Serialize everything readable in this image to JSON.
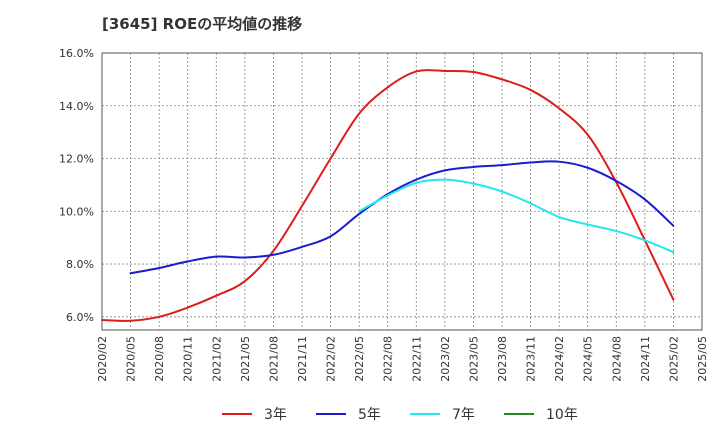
{
  "chart_data": {
    "type": "line",
    "title": "[3645]  ROEの平均値の推移",
    "xlabel": "",
    "ylabel": "",
    "ylim": [
      5.5,
      16.0
    ],
    "y_ticks": [
      6.0,
      8.0,
      10.0,
      12.0,
      14.0,
      16.0
    ],
    "y_tick_labels": [
      "6.0%",
      "8.0%",
      "10.0%",
      "12.0%",
      "14.0%",
      "16.0%"
    ],
    "x_tick_labels": [
      "2020/02",
      "2020/05",
      "2020/08",
      "2020/11",
      "2021/02",
      "2021/05",
      "2021/08",
      "2021/11",
      "2022/02",
      "2022/05",
      "2022/08",
      "2022/11",
      "2023/02",
      "2023/05",
      "2023/08",
      "2023/11",
      "2024/02",
      "2024/05",
      "2024/08",
      "2024/11",
      "2025/02",
      "2025/05"
    ],
    "grid": true,
    "legend_position": "bottom",
    "series": [
      {
        "name": "3年",
        "color": "#dd1c1c",
        "points": [
          [
            0,
            5.88
          ],
          [
            1,
            5.85
          ],
          [
            2,
            6.0
          ],
          [
            3,
            6.35
          ],
          [
            4,
            6.8
          ],
          [
            5,
            7.35
          ],
          [
            6,
            8.5
          ],
          [
            7,
            10.2
          ],
          [
            8,
            12.0
          ],
          [
            9,
            13.7
          ],
          [
            10,
            14.7
          ],
          [
            11,
            15.3
          ],
          [
            12,
            15.32
          ],
          [
            13,
            15.28
          ],
          [
            14,
            15.0
          ],
          [
            15,
            14.6
          ],
          [
            16,
            13.9
          ],
          [
            17,
            12.9
          ],
          [
            18,
            11.1
          ],
          [
            19,
            8.9
          ],
          [
            20,
            6.65
          ]
        ]
      },
      {
        "name": "5年",
        "color": "#1c1ccc",
        "points": [
          [
            1,
            7.65
          ],
          [
            2,
            7.85
          ],
          [
            3,
            8.1
          ],
          [
            4,
            8.28
          ],
          [
            5,
            8.25
          ],
          [
            6,
            8.35
          ],
          [
            7,
            8.65
          ],
          [
            8,
            9.05
          ],
          [
            9,
            9.9
          ],
          [
            10,
            10.65
          ],
          [
            11,
            11.2
          ],
          [
            12,
            11.55
          ],
          [
            13,
            11.68
          ],
          [
            14,
            11.75
          ],
          [
            15,
            11.85
          ],
          [
            16,
            11.88
          ],
          [
            17,
            11.65
          ],
          [
            18,
            11.15
          ],
          [
            19,
            10.45
          ],
          [
            20,
            9.45
          ]
        ]
      },
      {
        "name": "7年",
        "color": "#22e8ee",
        "points": [
          [
            9,
            10.0
          ],
          [
            10,
            10.6
          ],
          [
            11,
            11.08
          ],
          [
            12,
            11.2
          ],
          [
            13,
            11.05
          ],
          [
            14,
            10.75
          ],
          [
            15,
            10.3
          ],
          [
            16,
            9.78
          ],
          [
            17,
            9.5
          ],
          [
            18,
            9.25
          ],
          [
            19,
            8.9
          ],
          [
            20,
            8.45
          ]
        ]
      },
      {
        "name": "10年",
        "color": "#228b22",
        "points": []
      }
    ]
  }
}
